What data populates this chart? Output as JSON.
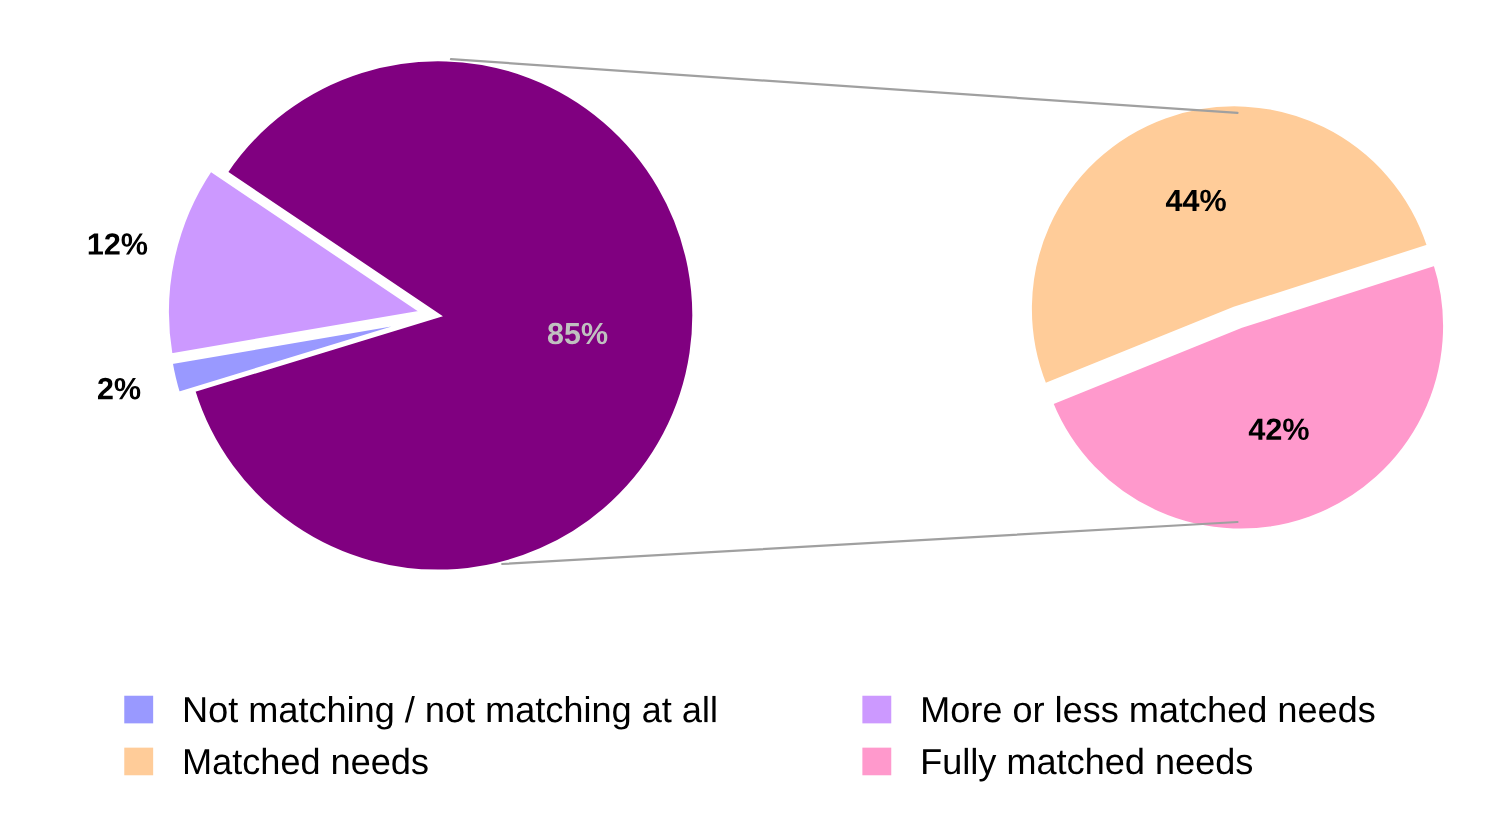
{
  "chart_data": [
    {
      "type": "pie",
      "categories": [
        "Not matching / not matching at all",
        "More or less matched needs",
        null
      ],
      "values": [
        2,
        12,
        85
      ],
      "value_labels": [
        "2%",
        "12%",
        "85%"
      ],
      "colors": [
        "#9999ff",
        "#cc99ff",
        "#800080"
      ],
      "legend": "bottom"
    },
    {
      "type": "pie",
      "categories": [
        "Matched needs",
        "Fully matched needs"
      ],
      "values": [
        44,
        42
      ],
      "value_labels": [
        "44%",
        "42%"
      ],
      "colors": [
        "#ffcc99",
        "#ff99cc"
      ],
      "legend": "bottom"
    }
  ]
}
